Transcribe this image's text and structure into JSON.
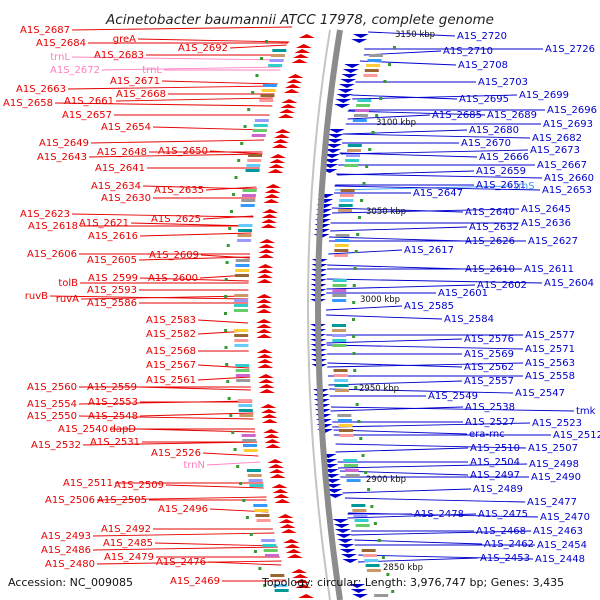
{
  "title": "Acinetobacter baumannii ATCC 17978, complete genome",
  "footer": {
    "accession": "Accession: NC_009085",
    "summary": "Topology: circular; Length: 3,976,747 bp; Genes: 3,435"
  },
  "colors": {
    "forward": "#e60000",
    "reverse": "#0000cc",
    "rna": "#ff80c0",
    "backbone": "#8c8c8c",
    "background": "#ffffff"
  },
  "kbp_marks": [
    "3150 kbp",
    "3100 kbp",
    "3050 kbp",
    "3000 kbp",
    "2950 kbp",
    "2900 kbp",
    "2850 kbp"
  ],
  "left_labels": [
    "A1S_2687",
    "A1S_2684",
    "greA",
    "A1S_2692",
    "A1S_2683",
    "trnL",
    "A1S_2672",
    "trnL",
    "A1S_2671",
    "A1S_2663",
    "A1S_2668",
    "A1S_2658",
    "A1S_2661",
    "A1S_2657",
    "A1S_2654",
    "A1S_2649",
    "A1S_2648",
    "A1S_2650",
    "A1S_2643",
    "A1S_2641",
    "A1S_2634",
    "A1S_2635",
    "A1S_2630",
    "A1S_2623",
    "A1S_2625",
    "A1S_2618",
    "A1S_2621",
    "A1S_2616",
    "A1S_2606",
    "A1S_2609",
    "A1S_2605",
    "tolB",
    "A1S_2599",
    "A1S_2600",
    "A1S_2593",
    "ruvB",
    "ruvA",
    "A1S_2586",
    "A1S_2583",
    "A1S_2582",
    "A1S_2568",
    "A1S_2567",
    "A1S_2561",
    "A1S_2560",
    "A1S_2559",
    "A1S_2554",
    "A1S_2553",
    "A1S_2550",
    "A1S_2548",
    "A1S_2540",
    "dapD",
    "A1S_2532",
    "A1S_2531",
    "A1S_2526",
    "trnN",
    "A1S_2511",
    "A1S_2509",
    "A1S_2506",
    "A1S_2505",
    "A1S_2496",
    "A1S_2493",
    "A1S_2492",
    "A1S_2485",
    "A1S_2486",
    "A1S_2479",
    "A1S_2476",
    "A1S_2480",
    "A1S_2469"
  ],
  "right_labels": [
    "A1S_2720",
    "A1S_2726",
    "A1S_2710",
    "A1S_2708",
    "A1S_2703",
    "A1S_2699",
    "A1S_2695",
    "A1S_2696",
    "A1S_2685",
    "A1S_2689",
    "A1S_2693",
    "A1S_2680",
    "A1S_2682",
    "A1S_2670",
    "A1S_2673",
    "A1S_2666",
    "A1S_2667",
    "A1S_2659",
    "A1S_2660",
    "A1S_2651",
    "trnS",
    "A1S_2653",
    "A1S_2647",
    "A1S_2645",
    "A1S_2640",
    "A1S_2636",
    "A1S_2632",
    "A1S_2626",
    "A1S_2627",
    "A1S_2617",
    "A1S_2610",
    "A1S_2611",
    "A1S_2602",
    "A1S_2604",
    "A1S_2601",
    "A1S_2585",
    "A1S_2584",
    "A1S_2577",
    "A1S_2576",
    "A1S_2571",
    "A1S_2569",
    "A1S_2563",
    "A1S_2562",
    "A1S_2558",
    "A1S_2557",
    "A1S_2547",
    "A1S_2549",
    "A1S_2538",
    "tmk",
    "A1S_2527",
    "A1S_2523",
    "era-rnc",
    "A1S_2512",
    "A1S_2510",
    "A1S_2507",
    "A1S_2504",
    "A1S_2498",
    "A1S_2497",
    "A1S_2490",
    "A1S_2489",
    "A1S_2477",
    "A1S_2478",
    "A1S_2475",
    "A1S_2470",
    "A1S_2468",
    "A1S_2463",
    "A1S_2462",
    "A1S_2454",
    "A1S_2453",
    "A1S_2448"
  ]
}
